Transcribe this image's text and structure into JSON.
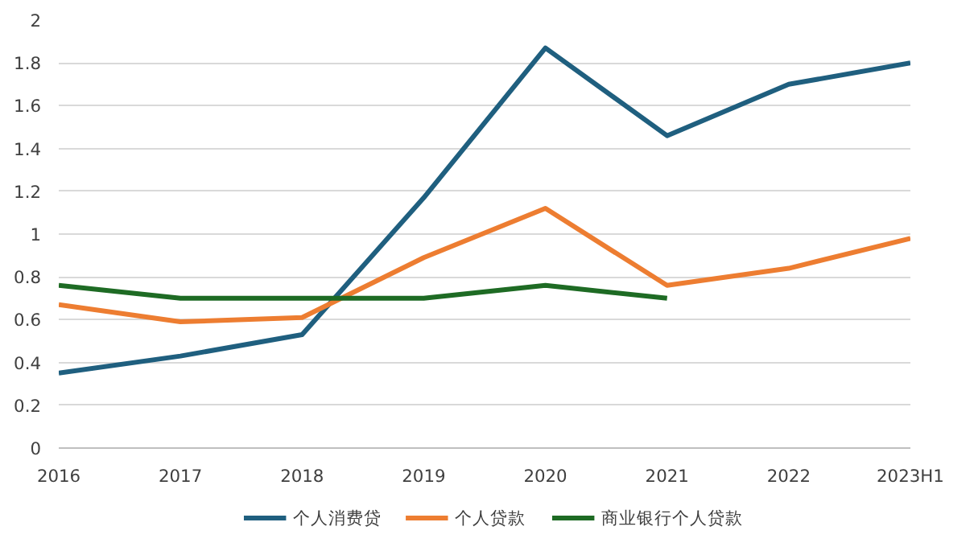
{
  "chart_data": {
    "type": "line",
    "categories": [
      "2016",
      "2017",
      "2018",
      "2019",
      "2020",
      "2021",
      "2022",
      "2023H1"
    ],
    "ylim": [
      0,
      2
    ],
    "yticks": [
      0,
      {
        "value": 0.2,
        "label": "0.2"
      },
      {
        "value": 0.4,
        "label": "0.4"
      },
      {
        "value": 0.6,
        "label": "0.6"
      },
      {
        "value": 0.8,
        "label": "0.8"
      },
      1,
      {
        "value": 1.2,
        "label": "1.2"
      },
      {
        "value": 1.4,
        "label": "1.4"
      },
      {
        "value": 1.6,
        "label": "1.6"
      },
      {
        "value": 1.8,
        "label": "1.8"
      },
      2
    ],
    "grid": "y",
    "legend": "bottom",
    "marker": "none",
    "line_style": "solid",
    "series": [
      {
        "name": "个人消费贷",
        "color": "#1f5f7f",
        "values": [
          0.35,
          0.43,
          0.53,
          1.17,
          1.87,
          1.46,
          1.7,
          1.8
        ]
      },
      {
        "name": "个人贷款",
        "color": "#ed7d31",
        "values": [
          0.67,
          0.59,
          0.61,
          0.89,
          1.12,
          0.76,
          0.84,
          0.98
        ]
      },
      {
        "name": "商业银行个人贷款",
        "color": "#1e6b24",
        "values": [
          0.76,
          0.7,
          0.7,
          0.7,
          0.76,
          0.7,
          null,
          null
        ]
      }
    ]
  }
}
